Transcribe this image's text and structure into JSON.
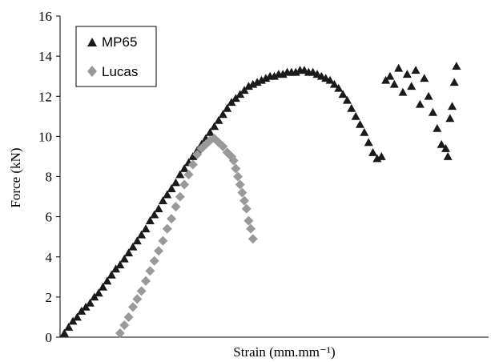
{
  "chart_data": {
    "type": "scatter",
    "xlabel": "Strain (mm.mm⁻¹)",
    "ylabel": "Force (kN)",
    "ylim": [
      0,
      16
    ],
    "yticks": [
      "0",
      "2",
      "4",
      "6",
      "8",
      "10",
      "12",
      "14",
      "16"
    ],
    "xlim": [
      0,
      1
    ],
    "x_tick_labels_shown": false,
    "grid": false,
    "legend_position": "top-left",
    "series": [
      {
        "name": "MP65",
        "marker": "triangle",
        "color": "#1a1a1a",
        "x": [
          0.01,
          0.02,
          0.03,
          0.04,
          0.05,
          0.06,
          0.07,
          0.08,
          0.09,
          0.1,
          0.11,
          0.12,
          0.13,
          0.14,
          0.15,
          0.16,
          0.17,
          0.18,
          0.19,
          0.2,
          0.21,
          0.22,
          0.23,
          0.24,
          0.25,
          0.26,
          0.27,
          0.28,
          0.29,
          0.3,
          0.31,
          0.32,
          0.33,
          0.34,
          0.35,
          0.36,
          0.37,
          0.38,
          0.39,
          0.4,
          0.41,
          0.42,
          0.43,
          0.44,
          0.45,
          0.46,
          0.47,
          0.48,
          0.49,
          0.5,
          0.51,
          0.52,
          0.53,
          0.54,
          0.55,
          0.56,
          0.57,
          0.58,
          0.59,
          0.6,
          0.61,
          0.62,
          0.63,
          0.64,
          0.65,
          0.66,
          0.67,
          0.68,
          0.69,
          0.7,
          0.71,
          0.72,
          0.73,
          0.74,
          0.75,
          0.76,
          0.77,
          0.78,
          0.79,
          0.8,
          0.81,
          0.82,
          0.83,
          0.84,
          0.85,
          0.86,
          0.87,
          0.88,
          0.89,
          0.9,
          0.905,
          0.91,
          0.915,
          0.92,
          0.925
        ],
        "y": [
          0.2,
          0.5,
          0.8,
          1.0,
          1.3,
          1.5,
          1.7,
          2.0,
          2.2,
          2.5,
          2.8,
          3.1,
          3.4,
          3.6,
          3.9,
          4.2,
          4.5,
          4.8,
          5.1,
          5.4,
          5.8,
          6.1,
          6.4,
          6.8,
          7.1,
          7.4,
          7.7,
          8.1,
          8.4,
          8.7,
          9.0,
          9.3,
          9.6,
          9.9,
          10.2,
          10.5,
          10.8,
          11.1,
          11.4,
          11.7,
          11.9,
          12.1,
          12.3,
          12.5,
          12.6,
          12.7,
          12.8,
          12.9,
          13.0,
          13.0,
          13.1,
          13.1,
          13.2,
          13.2,
          13.2,
          13.3,
          13.3,
          13.2,
          13.2,
          13.1,
          13.0,
          12.9,
          12.8,
          12.6,
          12.4,
          12.1,
          11.8,
          11.4,
          11.0,
          10.6,
          10.2,
          9.7,
          9.2,
          8.9,
          9.0,
          12.8,
          13.0,
          12.6,
          13.4,
          12.2,
          13.1,
          12.5,
          13.3,
          11.6,
          12.9,
          12.0,
          11.2,
          10.4,
          9.6,
          9.4,
          9.0,
          10.9,
          11.5,
          12.7,
          13.5
        ],
        "note_removed": false
      },
      {
        "name": "Lucas",
        "marker": "diamond",
        "color": "#999999",
        "x": [
          0.14,
          0.15,
          0.16,
          0.17,
          0.18,
          0.19,
          0.2,
          0.21,
          0.22,
          0.23,
          0.24,
          0.25,
          0.26,
          0.27,
          0.28,
          0.29,
          0.3,
          0.31,
          0.32,
          0.33,
          0.34,
          0.35,
          0.36,
          0.37,
          0.38,
          0.39,
          0.4,
          0.405,
          0.41,
          0.415,
          0.42,
          0.425,
          0.43,
          0.435,
          0.44,
          0.445,
          0.45
        ],
        "y": [
          0.2,
          0.6,
          1.0,
          1.5,
          1.9,
          2.3,
          2.8,
          3.3,
          3.8,
          4.3,
          4.8,
          5.4,
          5.9,
          6.5,
          7.0,
          7.6,
          8.1,
          8.6,
          9.1,
          9.4,
          9.6,
          9.8,
          9.9,
          9.7,
          9.5,
          9.2,
          9.0,
          8.8,
          8.4,
          8.0,
          7.6,
          7.2,
          6.8,
          6.4,
          5.8,
          5.4,
          4.9
        ]
      }
    ]
  }
}
